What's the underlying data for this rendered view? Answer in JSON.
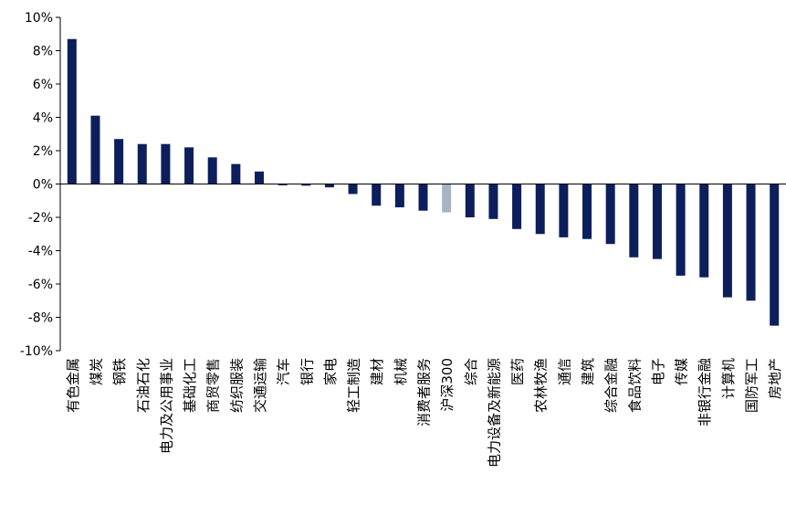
{
  "chart_data": {
    "type": "bar",
    "categories": [
      "有色金属",
      "煤炭",
      "钢铁",
      "石油石化",
      "电力及公用事业",
      "基础化工",
      "商贸零售",
      "纺织服装",
      "交通运输",
      "汽车",
      "银行",
      "家电",
      "轻工制造",
      "建材",
      "机械",
      "消费者服务",
      "沪深300",
      "综合",
      "电力设备及新能源",
      "医药",
      "农林牧渔",
      "通信",
      "建筑",
      "综合金融",
      "食品饮料",
      "电子",
      "传媒",
      "非银行金融",
      "计算机",
      "国防军工",
      "房地产"
    ],
    "values": [
      8.7,
      4.1,
      2.7,
      2.4,
      2.4,
      2.2,
      1.6,
      1.2,
      0.75,
      -0.08,
      -0.1,
      -0.2,
      -0.6,
      -1.3,
      -1.4,
      -1.6,
      -1.7,
      -2.0,
      -2.1,
      -2.7,
      -3.0,
      -3.2,
      -3.3,
      -3.6,
      -4.4,
      -4.5,
      -5.5,
      -5.6,
      -6.8,
      -7.0,
      -8.5
    ],
    "highlight_category": "沪深300",
    "ylim": [
      -10,
      10
    ],
    "yticks": [
      "-10%",
      "-8%",
      "-6%",
      "-4%",
      "-2%",
      "0%",
      "2%",
      "4%",
      "6%",
      "8%",
      "10%"
    ],
    "ytick_values": [
      -10,
      -8,
      -6,
      -4,
      -2,
      0,
      2,
      4,
      6,
      8,
      10
    ],
    "title": "",
    "xlabel": "",
    "ylabel": "",
    "grid": false,
    "colors": {
      "bar": "#0c1f5c",
      "highlight": "#a8b4c3"
    }
  }
}
